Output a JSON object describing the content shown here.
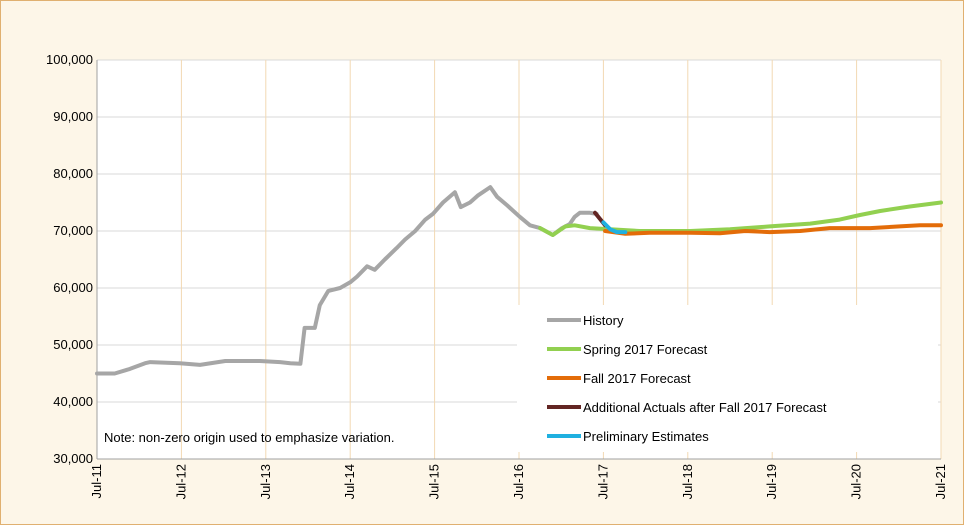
{
  "chart_data": {
    "type": "line",
    "annotation": "Note: non-zero origin used to emphasize variation.",
    "xlim": [
      2011.5,
      2021.5
    ],
    "xticks": [
      {
        "value": 2011.5,
        "label": "Jul-11"
      },
      {
        "value": 2012.5,
        "label": "Jul-12"
      },
      {
        "value": 2013.5,
        "label": "Jul-13"
      },
      {
        "value": 2014.5,
        "label": "Jul-14"
      },
      {
        "value": 2015.5,
        "label": "Jul-15"
      },
      {
        "value": 2016.5,
        "label": "Jul-16"
      },
      {
        "value": 2017.5,
        "label": "Jul-17"
      },
      {
        "value": 2018.5,
        "label": "Jul-18"
      },
      {
        "value": 2019.5,
        "label": "Jul-19"
      },
      {
        "value": 2020.5,
        "label": "Jul-20"
      },
      {
        "value": 2021.5,
        "label": "Jul-21"
      }
    ],
    "ylim": [
      30000,
      100000
    ],
    "yticks": [
      {
        "value": 30000,
        "label": "30,000"
      },
      {
        "value": 40000,
        "label": "40,000"
      },
      {
        "value": 50000,
        "label": "50,000"
      },
      {
        "value": 60000,
        "label": "60,000"
      },
      {
        "value": 70000,
        "label": "70,000"
      },
      {
        "value": 80000,
        "label": "80,000"
      },
      {
        "value": 90000,
        "label": "90,000"
      },
      {
        "value": 100000,
        "label": "100,000"
      }
    ],
    "grid": true,
    "legend": "lower right",
    "series": [
      {
        "name": "History",
        "color": "#a6a6a6",
        "x": [
          2011.5,
          2011.71,
          2011.89,
          2012.07,
          2012.13,
          2012.48,
          2012.72,
          2013.02,
          2013.43,
          2013.67,
          2013.79,
          2013.91,
          2013.96,
          2014.08,
          2014.14,
          2014.24,
          2014.38,
          2014.5,
          2014.58,
          2014.7,
          2014.79,
          2014.91,
          2015.05,
          2015.15,
          2015.27,
          2015.39,
          2015.48,
          2015.6,
          2015.74,
          2015.81,
          2015.92,
          2016.01,
          2016.16,
          2016.24,
          2016.36,
          2016.51,
          2016.63,
          2016.75,
          2016.9,
          2017.01,
          2017.1,
          2017.16,
          2017.22,
          2017.34,
          2017.42
        ],
        "values": [
          45000,
          45000,
          45800,
          46800,
          47000,
          46800,
          46500,
          47200,
          47200,
          47000,
          46800,
          46700,
          53000,
          53000,
          57000,
          59500,
          60000,
          61000,
          62000,
          63800,
          63200,
          65000,
          67000,
          68500,
          70000,
          72000,
          73000,
          75000,
          76800,
          74200,
          75000,
          76200,
          77700,
          76000,
          74500,
          72500,
          71000,
          70500,
          69300,
          70500,
          71200,
          72500,
          73200,
          73200,
          73000
        ]
      },
      {
        "name": "Spring 2017 Forecast",
        "color": "#92d050",
        "x": [
          2016.75,
          2016.9,
          2017.05,
          2017.16,
          2017.34,
          2017.58,
          2017.93,
          2018.53,
          2019.0,
          2019.47,
          2019.95,
          2020.3,
          2020.54,
          2020.78,
          2021.13,
          2021.5
        ],
        "values": [
          70500,
          69300,
          70800,
          71000,
          70500,
          70300,
          70000,
          70000,
          70300,
          70800,
          71300,
          72000,
          72800,
          73500,
          74300,
          75000
        ]
      },
      {
        "name": "Fall 2017 Forecast",
        "color": "#e36c09",
        "x": [
          2017.52,
          2017.76,
          2018.05,
          2018.53,
          2018.88,
          2019.18,
          2019.47,
          2019.83,
          2020.18,
          2020.66,
          2021.01,
          2021.25,
          2021.5
        ],
        "values": [
          70000,
          69500,
          69700,
          69700,
          69600,
          70000,
          69800,
          70000,
          70500,
          70500,
          70800,
          71000,
          71000
        ]
      },
      {
        "name": "Additional Actuals after Fall 2017 Forecast",
        "color": "#632523",
        "x": [
          2017.4,
          2017.52
        ],
        "values": [
          73200,
          71000
        ]
      },
      {
        "name": "Preliminary Estimates",
        "color": "#1fb0e0",
        "x": [
          2017.5,
          2017.58,
          2017.66,
          2017.76
        ],
        "values": [
          71500,
          70300,
          69800,
          69800
        ]
      }
    ]
  }
}
